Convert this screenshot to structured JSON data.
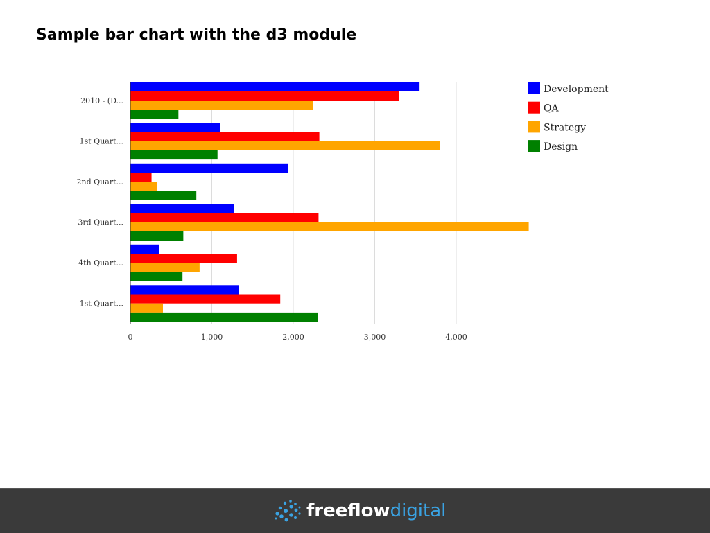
{
  "slide": {
    "title": "Sample bar chart with the d3 module"
  },
  "footer": {
    "logo_icon": "freeflow-globe-icon",
    "logo_text_1": "freeflow",
    "logo_text_2": "digital",
    "brand_color": "#3aa3e3"
  },
  "chart_data": {
    "type": "bar",
    "orientation": "horizontal",
    "title": "",
    "xlabel": "",
    "ylabel": "",
    "categories": [
      "2010 - (D...",
      "1st Quart...",
      "2nd Quart...",
      "3rd Quart...",
      "4th Quart...",
      "1st Quart..."
    ],
    "series": [
      {
        "name": "Development",
        "color": "#0000ff",
        "values": [
          3550,
          1100,
          1940,
          1270,
          350,
          1330
        ]
      },
      {
        "name": "QA",
        "color": "#ff0000",
        "values": [
          3300,
          2320,
          260,
          2310,
          1310,
          1840
        ]
      },
      {
        "name": "Strategy",
        "color": "#ffa500",
        "values": [
          2240,
          3800,
          330,
          4890,
          850,
          400
        ]
      },
      {
        "name": "Design",
        "color": "#008000",
        "values": [
          590,
          1070,
          810,
          650,
          640,
          2300
        ]
      }
    ],
    "x_ticks": [
      0,
      1000,
      2000,
      3000,
      4000
    ],
    "x_tick_labels": [
      "0",
      "1,000",
      "2,000",
      "3,000",
      "4,000"
    ],
    "xlim": [
      0,
      4890
    ],
    "grid": "vertical",
    "legend_position": "top-right"
  }
}
